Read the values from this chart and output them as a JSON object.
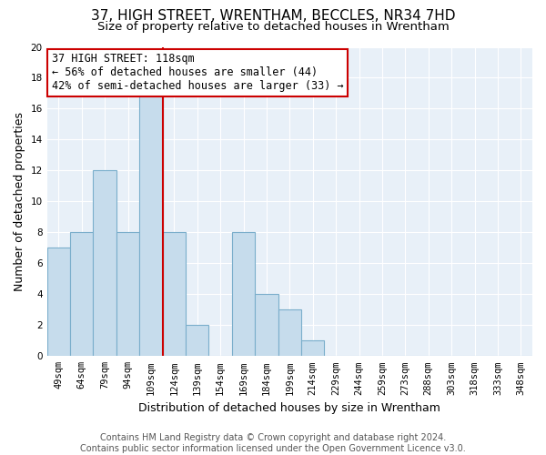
{
  "title": "37, HIGH STREET, WRENTHAM, BECCLES, NR34 7HD",
  "subtitle": "Size of property relative to detached houses in Wrentham",
  "xlabel": "Distribution of detached houses by size in Wrentham",
  "ylabel": "Number of detached properties",
  "bar_labels": [
    "49sqm",
    "64sqm",
    "79sqm",
    "94sqm",
    "109sqm",
    "124sqm",
    "139sqm",
    "154sqm",
    "169sqm",
    "184sqm",
    "199sqm",
    "214sqm",
    "229sqm",
    "244sqm",
    "259sqm",
    "273sqm",
    "288sqm",
    "303sqm",
    "318sqm",
    "333sqm",
    "348sqm"
  ],
  "bar_values": [
    7,
    8,
    12,
    8,
    17,
    8,
    2,
    0,
    8,
    4,
    3,
    1,
    0,
    0,
    0,
    0,
    0,
    0,
    0,
    0,
    0
  ],
  "bar_color": "#c6dcec",
  "bar_edge_color": "#7aaecb",
  "vline_x": 4.5,
  "vline_color": "#cc0000",
  "annotation_title": "37 HIGH STREET: 118sqm",
  "annotation_line1": "← 56% of detached houses are smaller (44)",
  "annotation_line2": "42% of semi-detached houses are larger (33) →",
  "annotation_box_color": "#ffffff",
  "annotation_box_edge": "#cc0000",
  "ylim": [
    0,
    20
  ],
  "yticks": [
    0,
    2,
    4,
    6,
    8,
    10,
    12,
    14,
    16,
    18,
    20
  ],
  "footer_line1": "Contains HM Land Registry data © Crown copyright and database right 2024.",
  "footer_line2": "Contains public sector information licensed under the Open Government Licence v3.0.",
  "title_fontsize": 11,
  "subtitle_fontsize": 9.5,
  "axis_label_fontsize": 9,
  "xlabel_fontsize": 9,
  "tick_fontsize": 7.5,
  "annotation_fontsize": 8.5,
  "footer_fontsize": 7,
  "bg_color": "#ffffff",
  "plot_bg_color": "#e8f0f8",
  "grid_color": "#ffffff"
}
